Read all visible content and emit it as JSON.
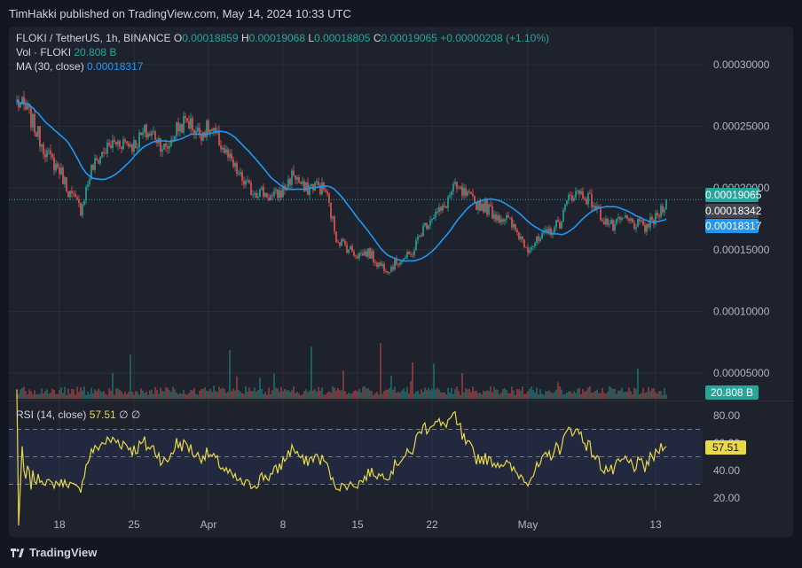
{
  "header": {
    "published": "TimHakki published on TradingView.com, May 14, 2024 10:33 UTC"
  },
  "legend": {
    "symbol": "FLOKI / TetherUS, 1h, BINANCE",
    "o_label": "O",
    "o": "0.00018859",
    "h_label": "H",
    "h": "0.00019068",
    "l_label": "L",
    "l": "0.00018805",
    "c_label": "C",
    "c": "0.00019065",
    "change": "+0.00000208 (+1.10%)",
    "vol_label": "Vol · FLOKI",
    "vol": "20.808 B",
    "ma_label": "MA (30, close)",
    "ma": "0.00018317",
    "rsi_label": "RSI (14, close)",
    "rsi": "57.51",
    "rsi_suffix": "∅ ∅"
  },
  "badges": {
    "price": "0.00019065",
    "mid": "0.00018342",
    "ma": "0.00018317",
    "vol": "20.808 B",
    "rsi": "57.51"
  },
  "colors": {
    "up": "#26a69a",
    "down": "#ef5350",
    "ma": "#2196f3",
    "rsi": "#e8d84a",
    "background": "#1e222d"
  },
  "footer": {
    "brand": "TradingView"
  },
  "chart_data": {
    "type": "candlestick",
    "symbol": "FLOKI / TetherUS",
    "interval": "1h",
    "exchange": "BINANCE",
    "price_axis": {
      "ticks": [
        0.0003,
        0.00025,
        0.0002,
        0.00015,
        0.0001,
        5e-05
      ],
      "labels": [
        "0.00030000",
        "0.00025000",
        "0.00020000",
        "0.00015000",
        "0.00010000",
        "0.00005000"
      ]
    },
    "time_axis": {
      "labels": [
        "18",
        "25",
        "Apr",
        "8",
        "15",
        "22",
        "May",
        "13"
      ]
    },
    "price_path": [
      {
        "date": "2024-03-14",
        "price": 0.00027
      },
      {
        "date": "2024-03-15",
        "price": 0.000262
      },
      {
        "date": "2024-03-16",
        "price": 0.000243
      },
      {
        "date": "2024-03-17",
        "price": 0.000225
      },
      {
        "date": "2024-03-18",
        "price": 0.000215
      },
      {
        "date": "2024-03-19",
        "price": 0.000195
      },
      {
        "date": "2024-03-20",
        "price": 0.000183
      },
      {
        "date": "2024-03-21",
        "price": 0.000215
      },
      {
        "date": "2024-03-22",
        "price": 0.000228
      },
      {
        "date": "2024-03-23",
        "price": 0.000236
      },
      {
        "date": "2024-03-24",
        "price": 0.000238
      },
      {
        "date": "2024-03-25",
        "price": 0.000235
      },
      {
        "date": "2024-03-26",
        "price": 0.000245
      },
      {
        "date": "2024-03-27",
        "price": 0.000243
      },
      {
        "date": "2024-03-28",
        "price": 0.00023
      },
      {
        "date": "2024-03-29",
        "price": 0.000248
      },
      {
        "date": "2024-03-30",
        "price": 0.000255
      },
      {
        "date": "2024-03-31",
        "price": 0.000245
      },
      {
        "date": "2024-04-01",
        "price": 0.000248
      },
      {
        "date": "2024-04-02",
        "price": 0.000238
      },
      {
        "date": "2024-04-03",
        "price": 0.000222
      },
      {
        "date": "2024-04-04",
        "price": 0.000208
      },
      {
        "date": "2024-04-05",
        "price": 0.000198
      },
      {
        "date": "2024-04-06",
        "price": 0.000197
      },
      {
        "date": "2024-04-07",
        "price": 0.000192
      },
      {
        "date": "2024-04-08",
        "price": 0.000198
      },
      {
        "date": "2024-04-09",
        "price": 0.000212
      },
      {
        "date": "2024-04-10",
        "price": 0.000198
      },
      {
        "date": "2024-04-11",
        "price": 0.000203
      },
      {
        "date": "2024-04-12",
        "price": 0.000198
      },
      {
        "date": "2024-04-13",
        "price": 0.00016
      },
      {
        "date": "2024-04-14",
        "price": 0.000152
      },
      {
        "date": "2024-04-15",
        "price": 0.000146
      },
      {
        "date": "2024-04-16",
        "price": 0.000148
      },
      {
        "date": "2024-04-17",
        "price": 0.000138
      },
      {
        "date": "2024-04-18",
        "price": 0.000135
      },
      {
        "date": "2024-04-19",
        "price": 0.000142
      },
      {
        "date": "2024-04-20",
        "price": 0.000145
      },
      {
        "date": "2024-04-21",
        "price": 0.000165
      },
      {
        "date": "2024-04-22",
        "price": 0.000178
      },
      {
        "date": "2024-04-23",
        "price": 0.000182
      },
      {
        "date": "2024-04-24",
        "price": 0.0002
      },
      {
        "date": "2024-04-25",
        "price": 0.000195
      },
      {
        "date": "2024-04-26",
        "price": 0.000188
      },
      {
        "date": "2024-04-27",
        "price": 0.000185
      },
      {
        "date": "2024-04-28",
        "price": 0.000178
      },
      {
        "date": "2024-04-29",
        "price": 0.000175
      },
      {
        "date": "2024-04-30",
        "price": 0.000164
      },
      {
        "date": "2024-05-01",
        "price": 0.000152
      },
      {
        "date": "2024-05-02",
        "price": 0.000157
      },
      {
        "date": "2024-05-03",
        "price": 0.000165
      },
      {
        "date": "2024-05-04",
        "price": 0.000172
      },
      {
        "date": "2024-05-05",
        "price": 0.000195
      },
      {
        "date": "2024-05-06",
        "price": 0.000196
      },
      {
        "date": "2024-05-07",
        "price": 0.000189
      },
      {
        "date": "2024-05-08",
        "price": 0.000176
      },
      {
        "date": "2024-05-09",
        "price": 0.000168
      },
      {
        "date": "2024-05-10",
        "price": 0.000175
      },
      {
        "date": "2024-05-11",
        "price": 0.000171
      },
      {
        "date": "2024-05-12",
        "price": 0.000168
      },
      {
        "date": "2024-05-13",
        "price": 0.000175
      },
      {
        "date": "2024-05-14",
        "price": 0.00019065
      }
    ],
    "last_close": 0.00019065,
    "ma30_last": 0.00018317,
    "volume_last": "20.808 B",
    "rsi": {
      "period": 14,
      "last": 57.51,
      "ticks": [
        80,
        60,
        40,
        20
      ],
      "tick_labels": [
        "80.00",
        "60.00",
        "40.00",
        "20.00"
      ],
      "band": [
        30,
        70
      ]
    }
  }
}
